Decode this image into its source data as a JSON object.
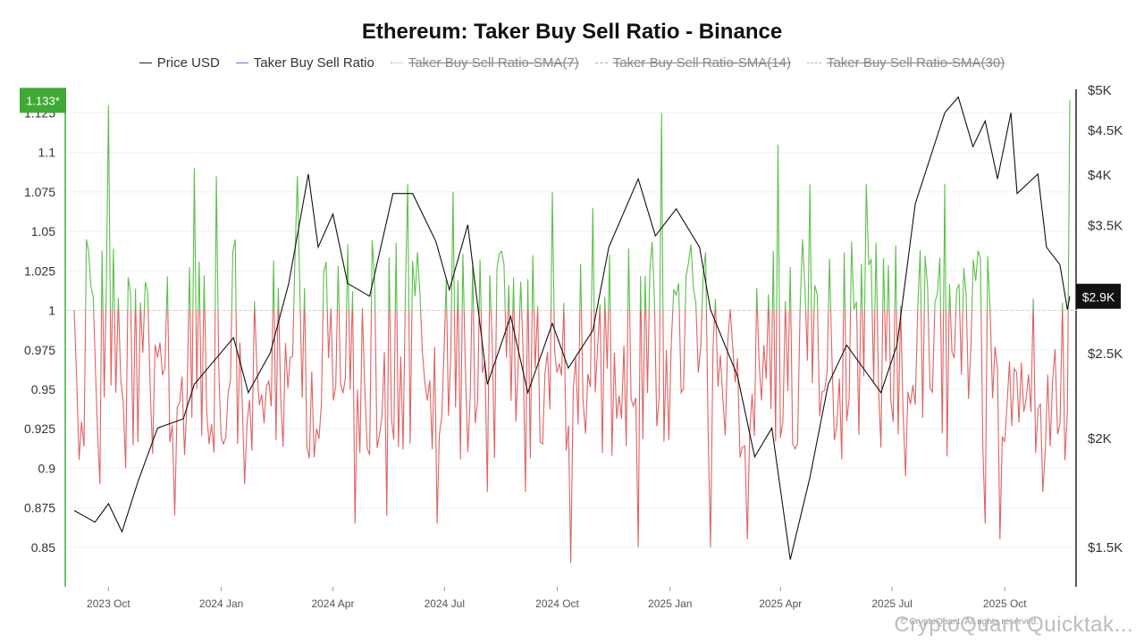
{
  "chart_data": {
    "type": "line",
    "title": "Ethereum: Taker Buy Sell Ratio - Binance",
    "legend": [
      {
        "name": "Price USD",
        "enabled": true
      },
      {
        "name": "Taker Buy Sell Ratio",
        "enabled": true
      },
      {
        "name": "Taker Buy Sell Ratio-SMA(7)",
        "enabled": false
      },
      {
        "name": "Taker Buy Sell Ratio-SMA(14)",
        "enabled": false
      },
      {
        "name": "Taker Buy Sell Ratio-SMA(30)",
        "enabled": false
      }
    ],
    "x_ticks": [
      "2023 Oct",
      "2024 Jan",
      "2024 Apr",
      "2024 Jul",
      "2024 Oct",
      "2025 Jan",
      "2025 Apr",
      "2025 Jul",
      "2025 Oct"
    ],
    "x_range": [
      "2023-09-03",
      "2025-11-23"
    ],
    "left_axis": {
      "ticks": [
        "1.125",
        "1.1",
        "1.075",
        "1.05",
        "1.025",
        "1",
        "0.975",
        "0.95",
        "0.925",
        "0.9",
        "0.875",
        "0.85"
      ],
      "range": [
        0.825,
        1.14
      ]
    },
    "right_axis": {
      "ticks": [
        "$5K",
        "$4.5K",
        "$4K",
        "$3.5K",
        "$3K",
        "$2.5K",
        "$2K",
        "$1.5K"
      ],
      "scale": "log",
      "range": [
        1350,
        5000
      ]
    },
    "baseline": 1,
    "ratio_current_label": "1.133*",
    "price_current_label": "$2.9K",
    "price_series": [
      {
        "x": "2023-09-03",
        "y": 1650
      },
      {
        "x": "2023-09-20",
        "y": 1600
      },
      {
        "x": "2023-10-01",
        "y": 1680
      },
      {
        "x": "2023-10-12",
        "y": 1560
      },
      {
        "x": "2023-10-25",
        "y": 1780
      },
      {
        "x": "2023-11-10",
        "y": 2050
      },
      {
        "x": "2023-12-01",
        "y": 2100
      },
      {
        "x": "2023-12-10",
        "y": 2300
      },
      {
        "x": "2024-01-11",
        "y": 2600
      },
      {
        "x": "2024-01-23",
        "y": 2250
      },
      {
        "x": "2024-02-10",
        "y": 2500
      },
      {
        "x": "2024-02-25",
        "y": 3000
      },
      {
        "x": "2024-03-12",
        "y": 4000
      },
      {
        "x": "2024-03-20",
        "y": 3300
      },
      {
        "x": "2024-04-01",
        "y": 3600
      },
      {
        "x": "2024-04-13",
        "y": 3000
      },
      {
        "x": "2024-05-01",
        "y": 2900
      },
      {
        "x": "2024-05-20",
        "y": 3800
      },
      {
        "x": "2024-06-05",
        "y": 3800
      },
      {
        "x": "2024-06-24",
        "y": 3350
      },
      {
        "x": "2024-07-05",
        "y": 2950
      },
      {
        "x": "2024-07-20",
        "y": 3500
      },
      {
        "x": "2024-08-05",
        "y": 2300
      },
      {
        "x": "2024-08-24",
        "y": 2750
      },
      {
        "x": "2024-09-07",
        "y": 2250
      },
      {
        "x": "2024-09-27",
        "y": 2700
      },
      {
        "x": "2024-10-10",
        "y": 2400
      },
      {
        "x": "2024-10-30",
        "y": 2650
      },
      {
        "x": "2024-11-12",
        "y": 3300
      },
      {
        "x": "2024-12-06",
        "y": 3950
      },
      {
        "x": "2024-12-20",
        "y": 3400
      },
      {
        "x": "2025-01-06",
        "y": 3650
      },
      {
        "x": "2025-01-25",
        "y": 3300
      },
      {
        "x": "2025-02-03",
        "y": 2800
      },
      {
        "x": "2025-02-25",
        "y": 2350
      },
      {
        "x": "2025-03-11",
        "y": 1900
      },
      {
        "x": "2025-03-25",
        "y": 2050
      },
      {
        "x": "2025-04-09",
        "y": 1450
      },
      {
        "x": "2025-04-25",
        "y": 1800
      },
      {
        "x": "2025-05-10",
        "y": 2300
      },
      {
        "x": "2025-05-25",
        "y": 2550
      },
      {
        "x": "2025-06-22",
        "y": 2250
      },
      {
        "x": "2025-07-05",
        "y": 2550
      },
      {
        "x": "2025-07-20",
        "y": 3700
      },
      {
        "x": "2025-08-13",
        "y": 4700
      },
      {
        "x": "2025-08-24",
        "y": 4900
      },
      {
        "x": "2025-09-05",
        "y": 4300
      },
      {
        "x": "2025-09-15",
        "y": 4600
      },
      {
        "x": "2025-09-25",
        "y": 3950
      },
      {
        "x": "2025-10-06",
        "y": 4700
      },
      {
        "x": "2025-10-11",
        "y": 3800
      },
      {
        "x": "2025-10-28",
        "y": 4000
      },
      {
        "x": "2025-11-04",
        "y": 3300
      },
      {
        "x": "2025-11-15",
        "y": 3150
      },
      {
        "x": "2025-11-21",
        "y": 2800
      },
      {
        "x": "2025-11-23",
        "y": 2900
      }
    ],
    "ratio_series": [
      {
        "x": "2023-09-03",
        "y": 1.0
      },
      {
        "x": "2023-09-13",
        "y": 1.045
      },
      {
        "x": "2023-09-24",
        "y": 0.89
      },
      {
        "x": "2023-10-01",
        "y": 1.13
      },
      {
        "x": "2023-10-15",
        "y": 0.9
      },
      {
        "x": "2023-11-24",
        "y": 0.87
      },
      {
        "x": "2023-12-10",
        "y": 1.09
      },
      {
        "x": "2023-12-28",
        "y": 1.085
      },
      {
        "x": "2024-01-20",
        "y": 0.89
      },
      {
        "x": "2024-02-01",
        "y": 0.94
      },
      {
        "x": "2024-03-03",
        "y": 1.085
      },
      {
        "x": "2024-04-19",
        "y": 0.865
      },
      {
        "x": "2024-05-15",
        "y": 0.87
      },
      {
        "x": "2024-06-01",
        "y": 1.08
      },
      {
        "x": "2024-06-25",
        "y": 0.865
      },
      {
        "x": "2024-07-08",
        "y": 1.075
      },
      {
        "x": "2024-08-05",
        "y": 0.885
      },
      {
        "x": "2024-09-05",
        "y": 0.885
      },
      {
        "x": "2024-09-27",
        "y": 1.075
      },
      {
        "x": "2024-10-12",
        "y": 0.84
      },
      {
        "x": "2024-10-30",
        "y": 1.065
      },
      {
        "x": "2024-12-06",
        "y": 0.85
      },
      {
        "x": "2024-12-25",
        "y": 1.125
      },
      {
        "x": "2025-02-03",
        "y": 0.85
      },
      {
        "x": "2025-03-05",
        "y": 0.855
      },
      {
        "x": "2025-03-30",
        "y": 1.105
      },
      {
        "x": "2025-04-25",
        "y": 1.08
      },
      {
        "x": "2025-06-10",
        "y": 1.08
      },
      {
        "x": "2025-07-12",
        "y": 0.895
      },
      {
        "x": "2025-08-13",
        "y": 1.08
      },
      {
        "x": "2025-09-15",
        "y": 0.865
      },
      {
        "x": "2025-09-27",
        "y": 0.855
      },
      {
        "x": "2025-11-01",
        "y": 0.885
      },
      {
        "x": "2025-11-19",
        "y": 0.905
      },
      {
        "x": "2025-11-23",
        "y": 1.133
      }
    ]
  },
  "watermark": "CryptoQuant Quicktak...",
  "copyright": "© CryptoQuant. All rights reserved."
}
